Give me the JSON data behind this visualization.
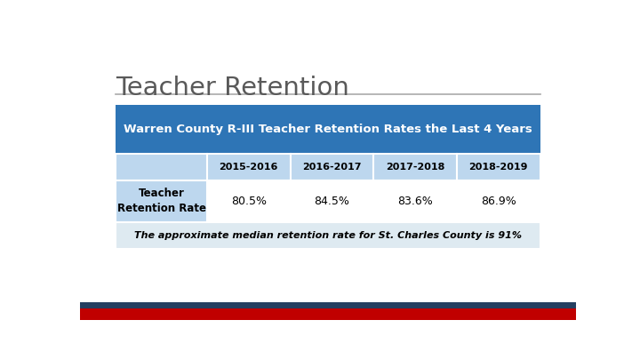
{
  "title": "Teacher Retention",
  "table_header": "Warren County R-III Teacher Retention Rates the Last 4 Years",
  "columns": [
    "",
    "2015-2016",
    "2016-2017",
    "2017-2018",
    "2018-2019"
  ],
  "row_label": "Teacher\nRetention Rate",
  "row_values": [
    "80.5%",
    "84.5%",
    "83.6%",
    "86.9%"
  ],
  "footer": "The approximate median retention rate for St. Charles County is 91%",
  "header_bg": "#2E75B6",
  "header_text": "#FFFFFF",
  "subheader_bg": "#BDD7EE",
  "subheader_text": "#000000",
  "row_bg": "#FFFFFF",
  "row_text": "#000000",
  "footer_bg": "#DEEAF1",
  "footer_text": "#000000",
  "title_color": "#595959",
  "line_color": "#AAAAAA",
  "bottom_blue_color": "#243F60",
  "bottom_red_color": "#C00000",
  "bg_color": "#FFFFFF"
}
